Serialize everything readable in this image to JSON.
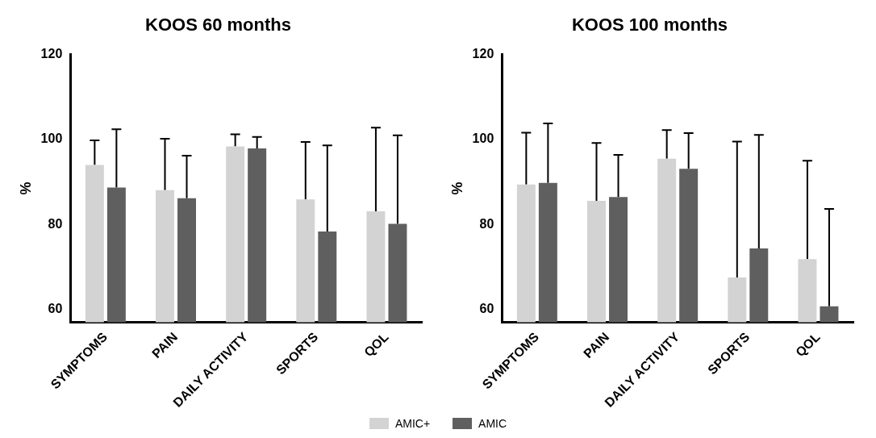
{
  "chart_data": [
    {
      "type": "bar",
      "title": "KOOS 60 months",
      "ylabel": "%",
      "categories": [
        "SYMPTOMS",
        "PAIN",
        "DAILY ACTIVITY",
        "SPORTS",
        "QOL"
      ],
      "ylim": [
        57,
        120
      ],
      "yticks": [
        60,
        80,
        100,
        120
      ],
      "grid": false,
      "series": [
        {
          "color": "#d3d3d3",
          "values": [
            94.0,
            88.1,
            98.4,
            85.9,
            83.1
          ],
          "errors": [
            [
              94.0,
              99.8
            ],
            [
              88.1,
              100.2
            ],
            [
              98.4,
              101.2
            ],
            [
              85.9,
              99.4
            ],
            [
              83.1,
              102.8
            ]
          ]
        },
        {
          "color": "#5f5f5f",
          "values": [
            88.7,
            86.2,
            97.9,
            78.4,
            80.2
          ],
          "errors": [
            [
              88.7,
              102.4
            ],
            [
              86.2,
              96.2
            ],
            [
              97.9,
              100.6
            ],
            [
              78.4,
              98.6
            ],
            [
              80.2,
              101.0
            ]
          ]
        }
      ]
    },
    {
      "type": "bar",
      "title": "KOOS 100 months",
      "ylabel": "%",
      "categories": [
        "SYMPTOMS",
        "PAIN",
        "DAILY ACTIVITY",
        "SPORTS",
        "QOL"
      ],
      "ylim": [
        57,
        120
      ],
      "yticks": [
        60,
        80,
        100,
        120
      ],
      "grid": false,
      "legend": "bottom",
      "series": [
        {
          "name": "AMIC+",
          "color": "#d3d3d3",
          "values": [
            89.4,
            85.6,
            95.5,
            67.6,
            71.9
          ],
          "errors": [
            [
              89.4,
              101.6
            ],
            [
              85.6,
              99.2
            ],
            [
              95.5,
              102.2
            ],
            [
              67.6,
              99.5
            ],
            [
              71.9,
              95.0
            ]
          ]
        },
        {
          "name": "AMIC",
          "color": "#5f5f5f",
          "values": [
            89.8,
            86.5,
            93.1,
            74.4,
            60.8
          ],
          "errors": [
            [
              89.8,
              103.8
            ],
            [
              86.5,
              96.4
            ],
            [
              93.1,
              101.5
            ],
            [
              74.4,
              101.1
            ],
            [
              60.8,
              83.7
            ]
          ]
        }
      ]
    }
  ]
}
